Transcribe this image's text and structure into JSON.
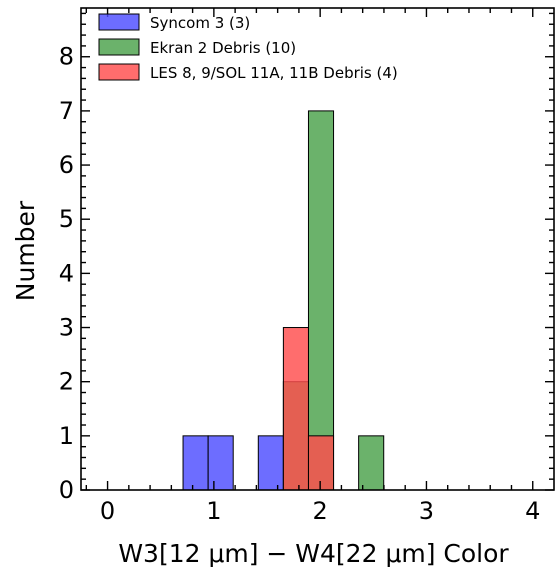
{
  "chart_data": {
    "type": "bar",
    "title": "",
    "xlabel": "W3[12 μm] − W4[22 μm] Color",
    "ylabel": "Number",
    "xlim": [
      -0.25,
      4.2
    ],
    "ylim": [
      0,
      8.9
    ],
    "xticks": [
      "0",
      "1",
      "2",
      "3",
      "4"
    ],
    "yticks": [
      "0",
      "1",
      "2",
      "3",
      "4",
      "5",
      "6",
      "7",
      "8"
    ],
    "bin_width": 0.236,
    "legend_position": "top-left",
    "grid": false,
    "series": [
      {
        "name": "Syncom 3 (3)",
        "color": "#4d4dff",
        "bins": [
          {
            "x0": 0.71,
            "count": 1
          },
          {
            "x0": 0.946,
            "count": 1
          },
          {
            "x0": 1.418,
            "count": 1
          }
        ]
      },
      {
        "name": "Ekran 2 Debris (10)",
        "color": "#4aa14a",
        "bins": [
          {
            "x0": 1.654,
            "count": 2
          },
          {
            "x0": 1.89,
            "count": 7
          },
          {
            "x0": 2.362,
            "count": 1
          }
        ]
      },
      {
        "name": "LES 8, 9/SOL 11A, 11B Debris (4)",
        "color": "#ff4d4d",
        "bins": [
          {
            "x0": 1.654,
            "count": 3
          },
          {
            "x0": 1.89,
            "count": 1
          }
        ]
      }
    ]
  }
}
